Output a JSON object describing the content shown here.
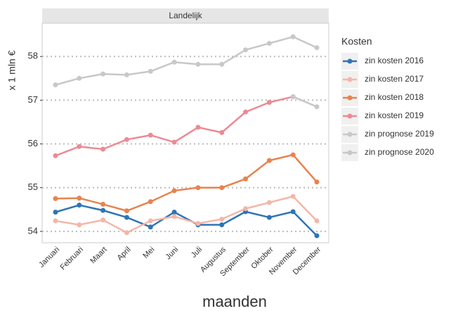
{
  "chart_data": {
    "type": "line",
    "title": "Landelijk",
    "y_label": "x 1 mln €",
    "x_label": "maanden",
    "legend_title": "Kosten",
    "categories": [
      "Januari",
      "Februari",
      "Maart",
      "April",
      "Mei",
      "Juni",
      "Juli",
      "Augustus",
      "September",
      "Oktober",
      "November",
      "December"
    ],
    "series": [
      {
        "name": "zin kosten 2016",
        "color": "#2e75b6",
        "values": [
          54.44,
          54.6,
          54.48,
          54.32,
          54.1,
          54.44,
          54.15,
          54.15,
          54.45,
          54.32,
          54.45,
          53.9
        ]
      },
      {
        "name": "zin kosten 2017",
        "color": "#f4b6a8",
        "values": [
          54.24,
          54.15,
          54.26,
          53.97,
          54.24,
          54.34,
          54.18,
          54.28,
          54.52,
          54.66,
          54.8,
          54.24
        ]
      },
      {
        "name": "zin kosten 2018",
        "color": "#e8834f",
        "values": [
          54.75,
          54.76,
          54.62,
          54.47,
          54.68,
          54.93,
          55.0,
          55.0,
          55.2,
          55.62,
          55.75,
          55.13
        ]
      },
      {
        "name": "zin kosten 2019",
        "color": "#ec8a94",
        "values": [
          55.73,
          55.94,
          55.88,
          56.1,
          56.2,
          56.04,
          56.38,
          56.26,
          56.73,
          56.95,
          57.08,
          null
        ]
      },
      {
        "name": "zin prognose 2019",
        "color": "#c8c8c8",
        "values": [
          null,
          null,
          null,
          null,
          null,
          null,
          null,
          null,
          null,
          null,
          57.08,
          56.85
        ]
      },
      {
        "name": "zin prognose 2020",
        "color": "#c8c8c8",
        "values": [
          57.35,
          57.5,
          57.6,
          57.58,
          57.66,
          57.87,
          57.82,
          57.82,
          58.15,
          58.3,
          58.45,
          58.2
        ]
      }
    ],
    "ylim": [
      53.74,
      58.76
    ],
    "yticks": [
      54,
      55,
      56,
      57,
      58
    ],
    "grid": true
  }
}
